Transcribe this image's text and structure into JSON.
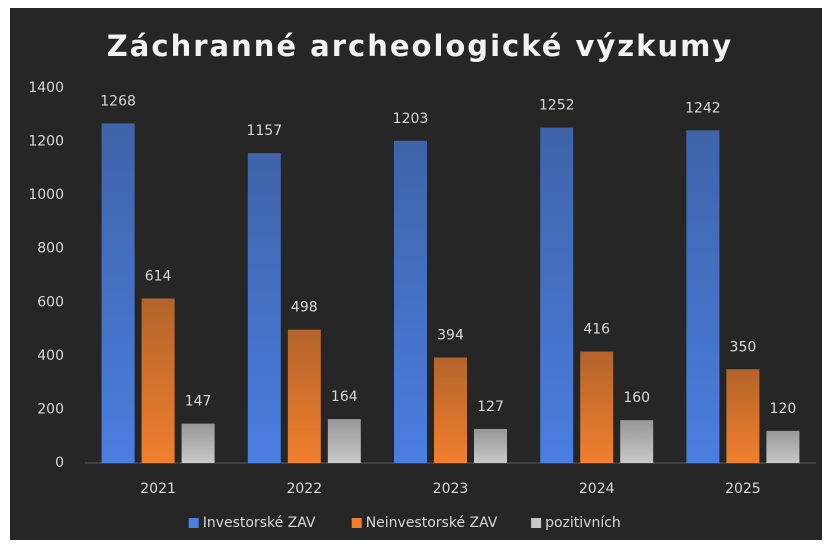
{
  "chart_data": {
    "type": "bar",
    "title": "Záchranné archeologické výzkumy",
    "categories": [
      "2021",
      "2022",
      "2023",
      "2024",
      "2025"
    ],
    "series": [
      {
        "name": "Investorské ZAV",
        "color": "#4a7ee0",
        "values": [
          1268,
          1157,
          1203,
          1252,
          1242
        ]
      },
      {
        "name": "Neinvestorské ZAV",
        "color": "#f07f2e",
        "values": [
          614,
          498,
          394,
          416,
          350
        ]
      },
      {
        "name": "pozitivních",
        "color": "#c8c8c8",
        "values": [
          147,
          164,
          127,
          160,
          120
        ]
      }
    ],
    "ylim": [
      0,
      1400
    ],
    "yticks": [
      0,
      200,
      400,
      600,
      800,
      1000,
      1200,
      1400
    ],
    "grid": false,
    "legend": "bottom"
  }
}
